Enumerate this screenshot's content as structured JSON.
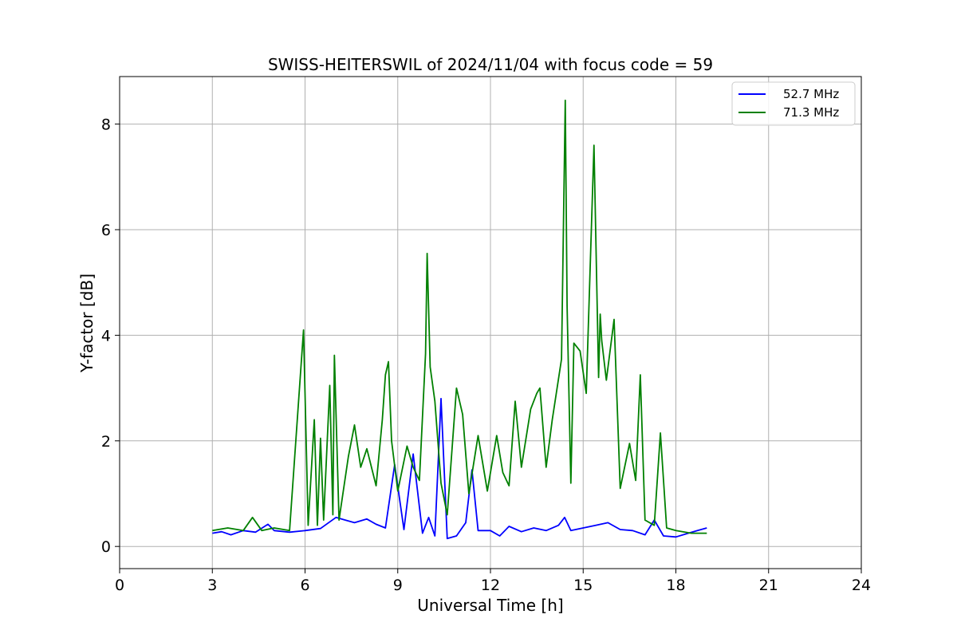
{
  "chart_data": {
    "type": "line",
    "title": "SWISS-HEITERSWIL of 2024/11/04 with focus code = 59",
    "xlabel": "Universal Time [h]",
    "ylabel": "Y-factor [dB]",
    "xlim": [
      0,
      24
    ],
    "ylim": [
      -0.42,
      8.9
    ],
    "xticks": [
      0,
      3,
      6,
      9,
      12,
      15,
      18,
      21,
      24
    ],
    "yticks": [
      0,
      2,
      4,
      6,
      8
    ],
    "xtick_labels": [
      "0",
      "3",
      "6",
      "9",
      "12",
      "15",
      "18",
      "21",
      "24"
    ],
    "ytick_labels": [
      "0",
      "2",
      "4",
      "6",
      "8"
    ],
    "grid": true,
    "legend_position": "top-right",
    "series": [
      {
        "name": "52.7 MHz",
        "color": "#0000ff",
        "points": [
          [
            3.0,
            0.25
          ],
          [
            3.3,
            0.28
          ],
          [
            3.6,
            0.22
          ],
          [
            4.0,
            0.3
          ],
          [
            4.4,
            0.27
          ],
          [
            4.8,
            0.42
          ],
          [
            5.0,
            0.3
          ],
          [
            5.5,
            0.27
          ],
          [
            6.0,
            0.3
          ],
          [
            6.5,
            0.34
          ],
          [
            7.0,
            0.55
          ],
          [
            7.3,
            0.5
          ],
          [
            7.6,
            0.45
          ],
          [
            8.0,
            0.52
          ],
          [
            8.3,
            0.42
          ],
          [
            8.6,
            0.35
          ],
          [
            8.9,
            1.55
          ],
          [
            9.2,
            0.32
          ],
          [
            9.5,
            1.75
          ],
          [
            9.8,
            0.25
          ],
          [
            10.0,
            0.55
          ],
          [
            10.2,
            0.2
          ],
          [
            10.4,
            2.8
          ],
          [
            10.6,
            0.15
          ],
          [
            10.9,
            0.2
          ],
          [
            11.2,
            0.45
          ],
          [
            11.4,
            1.45
          ],
          [
            11.6,
            0.3
          ],
          [
            12.0,
            0.3
          ],
          [
            12.3,
            0.2
          ],
          [
            12.6,
            0.38
          ],
          [
            13.0,
            0.28
          ],
          [
            13.4,
            0.35
          ],
          [
            13.8,
            0.3
          ],
          [
            14.2,
            0.4
          ],
          [
            14.4,
            0.55
          ],
          [
            14.6,
            0.3
          ],
          [
            15.0,
            0.35
          ],
          [
            15.4,
            0.4
          ],
          [
            15.8,
            0.45
          ],
          [
            16.2,
            0.32
          ],
          [
            16.6,
            0.3
          ],
          [
            17.0,
            0.22
          ],
          [
            17.3,
            0.5
          ],
          [
            17.6,
            0.2
          ],
          [
            18.0,
            0.18
          ],
          [
            18.4,
            0.25
          ],
          [
            18.7,
            0.3
          ],
          [
            19.0,
            0.35
          ]
        ]
      },
      {
        "name": "71.3 MHz",
        "color": "#008000",
        "points": [
          [
            3.0,
            0.3
          ],
          [
            3.5,
            0.35
          ],
          [
            4.0,
            0.3
          ],
          [
            4.3,
            0.55
          ],
          [
            4.6,
            0.3
          ],
          [
            5.0,
            0.35
          ],
          [
            5.5,
            0.3
          ],
          [
            5.95,
            4.1
          ],
          [
            6.1,
            0.4
          ],
          [
            6.3,
            2.4
          ],
          [
            6.4,
            0.4
          ],
          [
            6.5,
            2.05
          ],
          [
            6.6,
            0.5
          ],
          [
            6.8,
            3.05
          ],
          [
            6.9,
            0.6
          ],
          [
            6.95,
            3.62
          ],
          [
            7.1,
            0.5
          ],
          [
            7.4,
            1.7
          ],
          [
            7.6,
            2.3
          ],
          [
            7.8,
            1.5
          ],
          [
            8.0,
            1.85
          ],
          [
            8.3,
            1.15
          ],
          [
            8.5,
            2.4
          ],
          [
            8.6,
            3.25
          ],
          [
            8.7,
            3.5
          ],
          [
            8.8,
            2.0
          ],
          [
            9.0,
            1.05
          ],
          [
            9.3,
            1.9
          ],
          [
            9.5,
            1.5
          ],
          [
            9.7,
            1.25
          ],
          [
            9.9,
            3.65
          ],
          [
            9.95,
            5.55
          ],
          [
            10.05,
            3.4
          ],
          [
            10.2,
            2.75
          ],
          [
            10.4,
            1.2
          ],
          [
            10.6,
            0.6
          ],
          [
            10.9,
            3.0
          ],
          [
            11.1,
            2.5
          ],
          [
            11.3,
            1.0
          ],
          [
            11.6,
            2.1
          ],
          [
            11.9,
            1.05
          ],
          [
            12.2,
            2.1
          ],
          [
            12.4,
            1.4
          ],
          [
            12.6,
            1.15
          ],
          [
            12.8,
            2.75
          ],
          [
            13.0,
            1.5
          ],
          [
            13.3,
            2.6
          ],
          [
            13.5,
            2.9
          ],
          [
            13.6,
            3.0
          ],
          [
            13.8,
            1.5
          ],
          [
            14.0,
            2.4
          ],
          [
            14.3,
            3.55
          ],
          [
            14.42,
            8.45
          ],
          [
            14.48,
            4.55
          ],
          [
            14.6,
            1.2
          ],
          [
            14.7,
            3.85
          ],
          [
            14.9,
            3.7
          ],
          [
            15.1,
            2.9
          ],
          [
            15.35,
            7.6
          ],
          [
            15.5,
            3.2
          ],
          [
            15.55,
            4.4
          ],
          [
            15.6,
            3.9
          ],
          [
            15.75,
            3.15
          ],
          [
            16.0,
            4.3
          ],
          [
            16.2,
            1.1
          ],
          [
            16.5,
            1.95
          ],
          [
            16.7,
            1.25
          ],
          [
            16.85,
            3.25
          ],
          [
            17.0,
            0.5
          ],
          [
            17.3,
            0.4
          ],
          [
            17.5,
            2.15
          ],
          [
            17.7,
            0.35
          ],
          [
            18.0,
            0.3
          ],
          [
            18.5,
            0.25
          ],
          [
            19.0,
            0.25
          ]
        ]
      }
    ]
  }
}
